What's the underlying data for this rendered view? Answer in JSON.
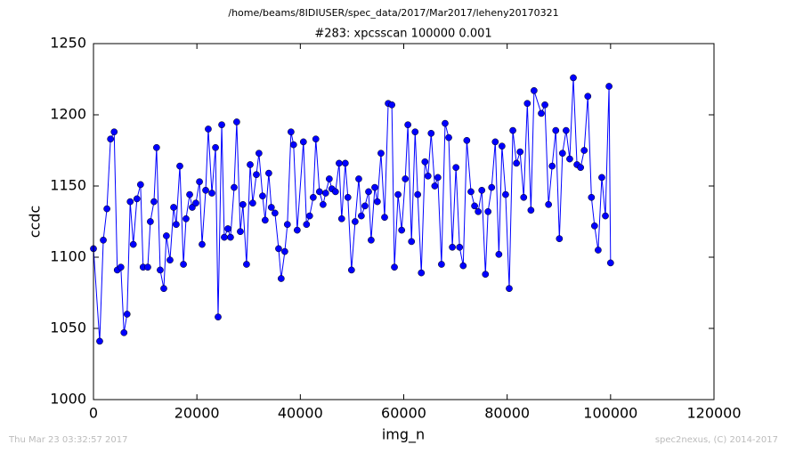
{
  "page_path": "/home/beams/8IDIUSER/spec_data/2017/Mar2017/leheny20170321",
  "timestamp": "Thu Mar 23 03:32:57 2017",
  "credit": "spec2nexus, (C) 2014-2017",
  "chart_data": {
    "type": "line",
    "title": "#283: xpcsscan 100000 0.001",
    "xlabel": "img_n",
    "ylabel": "ccdc",
    "color": "#0000ff",
    "marker": "circle",
    "xlim": [
      0,
      120000
    ],
    "xticks": [
      0,
      20000,
      40000,
      60000,
      80000,
      100000,
      120000
    ],
    "ylim": [
      1000,
      1250
    ],
    "yticks": [
      1000,
      1050,
      1100,
      1150,
      1200,
      1250
    ],
    "grid": false,
    "x": [
      0,
      1200,
      1900,
      2600,
      3300,
      4000,
      4600,
      5300,
      5900,
      6500,
      7100,
      7700,
      8400,
      9100,
      9600,
      10500,
      11000,
      11700,
      12200,
      12900,
      13600,
      14100,
      14800,
      15500,
      16000,
      16700,
      17400,
      17900,
      18600,
      19100,
      19800,
      20500,
      21000,
      21700,
      22200,
      22900,
      23600,
      24100,
      24800,
      25300,
      26000,
      26500,
      27200,
      27700,
      28400,
      28900,
      29600,
      30300,
      30800,
      31500,
      32000,
      32700,
      33200,
      33900,
      34400,
      35100,
      35800,
      36300,
      37000,
      37500,
      38200,
      38700,
      39400,
      40600,
      41200,
      41800,
      42500,
      43000,
      43700,
      44400,
      44900,
      45600,
      46100,
      46800,
      47500,
      48000,
      48700,
      49200,
      49900,
      50600,
      51300,
      51800,
      52500,
      53200,
      53700,
      54400,
      54900,
      55600,
      56300,
      57000,
      57700,
      58200,
      58900,
      59600,
      60300,
      60800,
      61500,
      62200,
      62700,
      63400,
      64100,
      64700,
      65300,
      66000,
      66600,
      67300,
      68000,
      68700,
      69400,
      70100,
      70800,
      71500,
      72200,
      73000,
      73700,
      74400,
      75100,
      75800,
      76300,
      77000,
      77700,
      78400,
      79000,
      79700,
      80400,
      81100,
      81800,
      82500,
      83200,
      83900,
      84600,
      85200,
      86600,
      87300,
      88000,
      88700,
      89400,
      90100,
      90700,
      91400,
      92100,
      92800,
      93500,
      94200,
      94900,
      95600,
      96300,
      96900,
      97600,
      98300,
      99000,
      99700,
      100000
    ],
    "values": [
      1106,
      1041,
      1112,
      1134,
      1183,
      1188,
      1091,
      1093,
      1047,
      1060,
      1139,
      1109,
      1141,
      1151,
      1093,
      1093,
      1125,
      1139,
      1177,
      1091,
      1078,
      1115,
      1098,
      1135,
      1123,
      1164,
      1095,
      1127,
      1144,
      1135,
      1138,
      1153,
      1109,
      1147,
      1190,
      1145,
      1177,
      1058,
      1193,
      1114,
      1120,
      1114,
      1149,
      1195,
      1118,
      1137,
      1095,
      1165,
      1138,
      1158,
      1173,
      1143,
      1126,
      1159,
      1135,
      1131,
      1106,
      1085,
      1104,
      1123,
      1188,
      1179,
      1119,
      1181,
      1123,
      1129,
      1142,
      1183,
      1146,
      1137,
      1145,
      1155,
      1148,
      1146,
      1166,
      1127,
      1166,
      1142,
      1091,
      1125,
      1155,
      1129,
      1136,
      1146,
      1112,
      1149,
      1139,
      1173,
      1128,
      1208,
      1207,
      1093,
      1144,
      1119,
      1155,
      1193,
      1111,
      1188,
      1144,
      1089,
      1167,
      1157,
      1187,
      1150,
      1156,
      1095,
      1194,
      1184,
      1107,
      1163,
      1107,
      1094,
      1182,
      1146,
      1136,
      1132,
      1147,
      1088,
      1132,
      1149,
      1181,
      1102,
      1178,
      1144,
      1078,
      1189,
      1166,
      1174,
      1142,
      1208,
      1133,
      1217,
      1201,
      1207,
      1137,
      1164,
      1189,
      1113,
      1173,
      1189,
      1169,
      1226,
      1165,
      1163,
      1175,
      1213,
      1142,
      1122,
      1105,
      1156,
      1129,
      1220,
      1096
    ]
  }
}
